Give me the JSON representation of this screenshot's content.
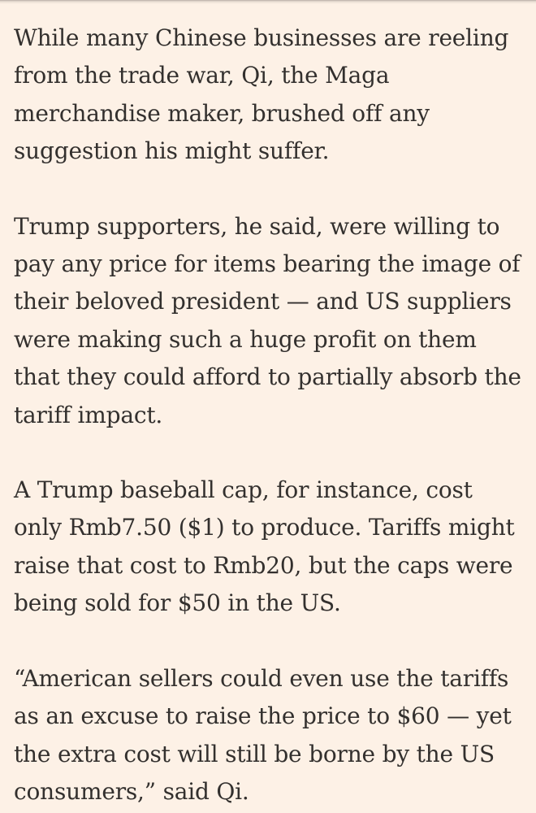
{
  "article": {
    "paragraphs": [
      "While many Chinese businesses are reeling from the trade war, Qi, the Maga merchandise maker, brushed off any suggestion his might suffer.",
      "Trump supporters, he said, were willing to pay any price for items bearing the image of their beloved president — and US suppliers were making such a huge profit on them that they could afford to partially absorb the tariff impact.",
      "A Trump baseball cap, for instance, cost only Rmb7.50 ($1) to produce. Tariffs might raise that cost to Rmb20, but the caps were being sold for $50 in the US.",
      "“American sellers could even use the tariffs as an excuse to raise the price to $60 — yet the extra cost will still be borne by the US consumers,” said Qi."
    ]
  },
  "colors": {
    "background": "#fdf1e6",
    "text": "#33302e"
  }
}
